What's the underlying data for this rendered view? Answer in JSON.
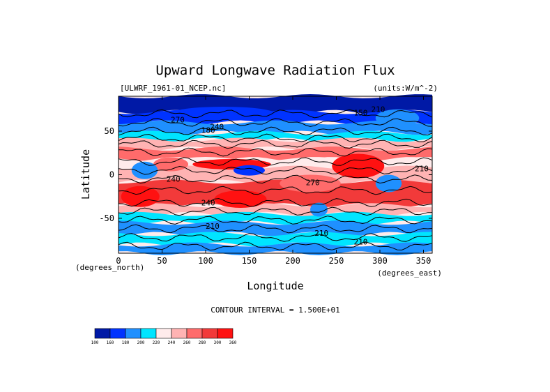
{
  "chart_data": {
    "type": "heatmap",
    "title": "Upward Longwave Radiation Flux",
    "source_file": "[ULWRF_1961-01_NCEP.nc]",
    "units_label": "(units:W/m^-2)",
    "xlabel": "Longitude",
    "ylabel": "Latitude",
    "x_unit_label": "(degrees_east)",
    "y_unit_label": "(degrees_north)",
    "xlim": [
      0,
      360
    ],
    "ylim": [
      -90,
      90
    ],
    "x_ticks": [
      "0",
      "50",
      "100",
      "150",
      "200",
      "250",
      "300",
      "350"
    ],
    "x_tick_values": [
      0,
      50,
      100,
      150,
      200,
      250,
      300,
      350
    ],
    "y_ticks": [
      "50",
      "0",
      "-50"
    ],
    "y_tick_values": [
      50,
      0,
      -50
    ],
    "contour_interval_text": "CONTOUR INTERVAL = 1.500E+01",
    "contour_labels": [
      "210",
      "240",
      "270",
      "180",
      "150",
      "210",
      "240",
      "270",
      "240",
      "210",
      "210",
      "210"
    ],
    "colorbar": {
      "ticks": [
        "100",
        "160",
        "180",
        "200",
        "220",
        "240",
        "260",
        "280",
        "300",
        "360"
      ],
      "colors": [
        "#0019a6",
        "#0033ff",
        "#1f90ff",
        "#00e5ff",
        "#ffebeb",
        "#ffb3b3",
        "#ff6b6b",
        "#f23a3a",
        "#ff1111"
      ]
    },
    "grid": false
  }
}
